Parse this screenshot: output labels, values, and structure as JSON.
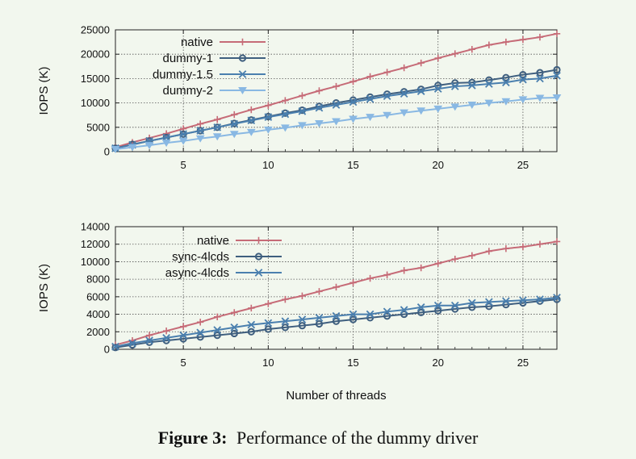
{
  "caption": {
    "label": "Figure 3:",
    "text": "Performance of the dummy driver"
  },
  "chart_data": [
    {
      "type": "line",
      "ylabel": "IOPS (K)",
      "xlabel": "",
      "xlim": [
        1,
        27
      ],
      "ylim": [
        0,
        25000
      ],
      "xticks": [
        5,
        10,
        15,
        20,
        25
      ],
      "yticks": [
        0,
        5000,
        10000,
        15000,
        20000,
        25000
      ],
      "grid": true,
      "legend": "top-left",
      "x": [
        1,
        2,
        3,
        4,
        5,
        6,
        7,
        8,
        9,
        10,
        11,
        12,
        13,
        14,
        15,
        16,
        17,
        18,
        19,
        20,
        21,
        22,
        23,
        24,
        25,
        26,
        27
      ],
      "series": [
        {
          "name": "native",
          "color": "#c66b77",
          "marker": "plus",
          "values": [
            900,
            1900,
            2800,
            3700,
            4700,
            5700,
            6600,
            7600,
            8600,
            9500,
            10500,
            11500,
            12500,
            13400,
            14400,
            15400,
            16300,
            17200,
            18200,
            19200,
            20100,
            21000,
            21900,
            22500,
            23000,
            23500,
            24200
          ]
        },
        {
          "name": "dummy-1",
          "color": "#3f5f7f",
          "marker": "circle",
          "values": [
            700,
            1500,
            2200,
            2900,
            3600,
            4300,
            5000,
            5800,
            6500,
            7200,
            7900,
            8500,
            9300,
            10000,
            10600,
            11200,
            11800,
            12300,
            12800,
            13600,
            14100,
            14200,
            14700,
            15200,
            15800,
            16200,
            16800
          ]
        },
        {
          "name": "dummy-1.5",
          "color": "#4a7fae",
          "marker": "cross",
          "values": [
            700,
            1400,
            2200,
            2900,
            3600,
            4300,
            5000,
            5700,
            6400,
            7100,
            7700,
            8300,
            9000,
            9600,
            10200,
            10800,
            11400,
            11900,
            12400,
            12900,
            13400,
            13600,
            13900,
            14200,
            14800,
            15000,
            15600
          ]
        },
        {
          "name": "dummy-2",
          "color": "#89b8e3",
          "marker": "triangle-down",
          "values": [
            500,
            900,
            1300,
            1800,
            2200,
            2700,
            3100,
            3600,
            4000,
            4500,
            4900,
            5400,
            5800,
            6200,
            6700,
            7100,
            7500,
            8000,
            8400,
            8800,
            9200,
            9600,
            10000,
            10300,
            10700,
            11000,
            11100
          ]
        }
      ]
    },
    {
      "type": "line",
      "ylabel": "IOPS (K)",
      "xlabel": "Number of threads",
      "xlim": [
        1,
        27
      ],
      "ylim": [
        0,
        14000
      ],
      "xticks": [
        5,
        10,
        15,
        20,
        25
      ],
      "yticks": [
        0,
        2000,
        4000,
        6000,
        8000,
        10000,
        12000,
        14000
      ],
      "grid": true,
      "legend": "top-left",
      "x": [
        1,
        2,
        3,
        4,
        5,
        6,
        7,
        8,
        9,
        10,
        11,
        12,
        13,
        14,
        15,
        16,
        17,
        18,
        19,
        20,
        21,
        22,
        23,
        24,
        25,
        26,
        27
      ],
      "series": [
        {
          "name": "native",
          "color": "#c66b77",
          "marker": "plus",
          "values": [
            500,
            1000,
            1600,
            2100,
            2600,
            3100,
            3700,
            4200,
            4700,
            5200,
            5700,
            6100,
            6600,
            7100,
            7600,
            8100,
            8500,
            9000,
            9300,
            9800,
            10300,
            10700,
            11200,
            11500,
            11700,
            12000,
            12300
          ]
        },
        {
          "name": "sync-4lcds",
          "color": "#3f5f7f",
          "marker": "circle",
          "values": [
            200,
            500,
            800,
            1000,
            1200,
            1400,
            1600,
            1800,
            2000,
            2300,
            2500,
            2700,
            2900,
            3200,
            3400,
            3600,
            3800,
            4000,
            4200,
            4400,
            4600,
            4800,
            4900,
            5100,
            5300,
            5500,
            5700
          ]
        },
        {
          "name": "async-4lcds",
          "color": "#4a7fae",
          "marker": "cross",
          "values": [
            300,
            700,
            1000,
            1300,
            1600,
            1900,
            2200,
            2500,
            2800,
            3000,
            3200,
            3400,
            3600,
            3800,
            4000,
            4000,
            4300,
            4500,
            4800,
            5000,
            5000,
            5300,
            5400,
            5500,
            5600,
            5700,
            5900
          ]
        }
      ]
    }
  ]
}
